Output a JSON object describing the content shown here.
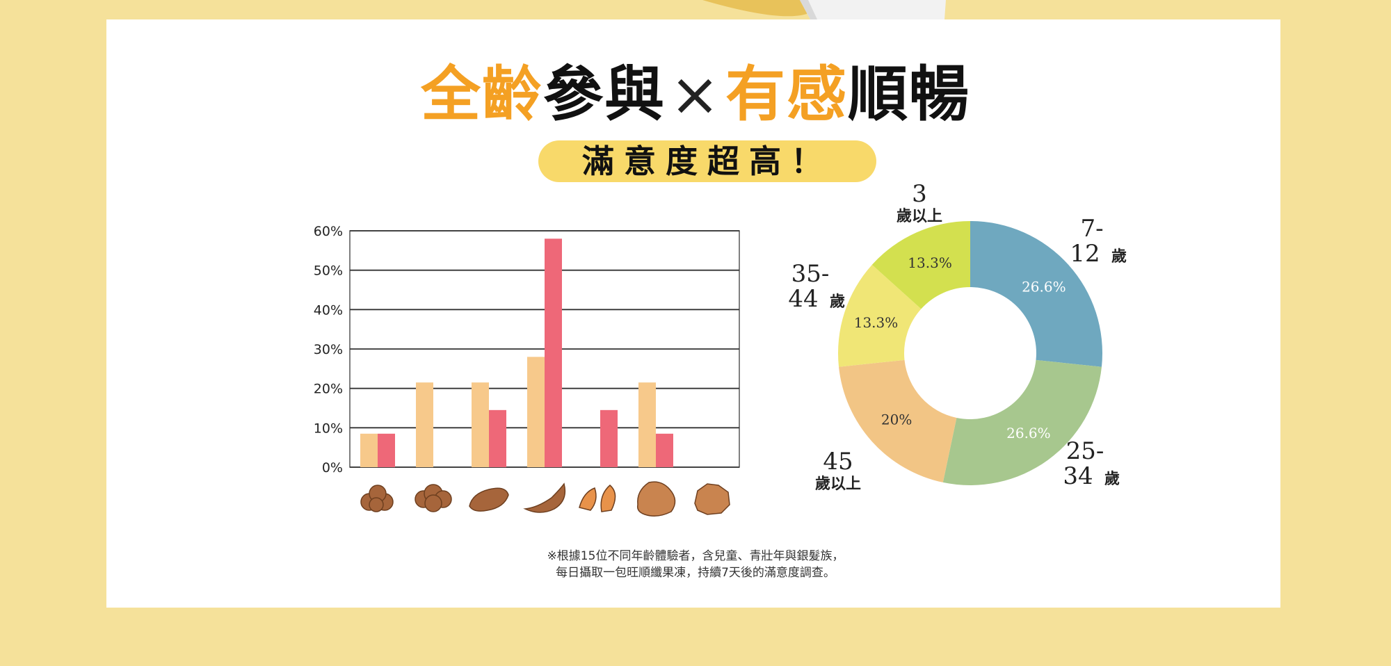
{
  "header": {
    "title_parts": [
      {
        "text": "全齡",
        "style": "hl"
      },
      {
        "text": "參與",
        "style": "dk"
      },
      {
        "text": "×",
        "style": "x"
      },
      {
        "text": "有感",
        "style": "hl"
      },
      {
        "text": "順暢",
        "style": "dk"
      }
    ],
    "subtitle": "滿意度超高！"
  },
  "footnote": {
    "line1": "※根據15位不同年齡體驗者，含兒童、青壯年與銀髮族，",
    "line2": "每日攝取一包旺順纖果凍，持續7天後的滿意度調查。"
  },
  "colors": {
    "accent": "#f4a023",
    "bar_series_1": "#f7c98b",
    "bar_series_2": "#ee6878",
    "stool_icon": "#a6653b",
    "donut": [
      "#6fa8bf",
      "#a7c78e",
      "#f2c585",
      "#f0e676",
      "#d3e04f"
    ]
  },
  "chart_data": [
    {
      "type": "bar",
      "categories": [
        "stool-type-1-icon",
        "stool-type-2-icon",
        "stool-type-3-icon",
        "stool-type-4-icon",
        "stool-type-5-icon",
        "stool-type-6-icon",
        "stool-type-7-icon"
      ],
      "series": [
        {
          "values": [
            8.5,
            21.5,
            21.5,
            28,
            0,
            21.5,
            0
          ]
        },
        {
          "values": [
            8.5,
            0,
            14.5,
            58,
            14.5,
            8.5,
            0
          ]
        }
      ],
      "ylim": [
        0,
        60
      ],
      "yticks": [
        "0%",
        "10%",
        "20%",
        "30%",
        "40%",
        "50%",
        "60%"
      ],
      "grid": true
    },
    {
      "type": "pie",
      "donut": true,
      "slices": [
        {
          "label_line1": "7-",
          "label_line2": "12",
          "label_suffix": "歲",
          "value": 26.6,
          "value_label": "26.6%"
        },
        {
          "label_line1": "25-",
          "label_line2": "34",
          "label_suffix": "歲",
          "value": 26.6,
          "value_label": "26.6%"
        },
        {
          "label_line1": "45",
          "label_line2": "",
          "label_suffix": "歲以上",
          "value": 20,
          "value_label": "20%"
        },
        {
          "label_line1": "35-",
          "label_line2": "44",
          "label_suffix": "歲",
          "value": 13.3,
          "value_label": "13.3%"
        },
        {
          "label_line1": "3",
          "label_line2": "",
          "label_suffix": "歲以上",
          "value": 13.3,
          "value_label": "13.3%"
        }
      ]
    }
  ]
}
